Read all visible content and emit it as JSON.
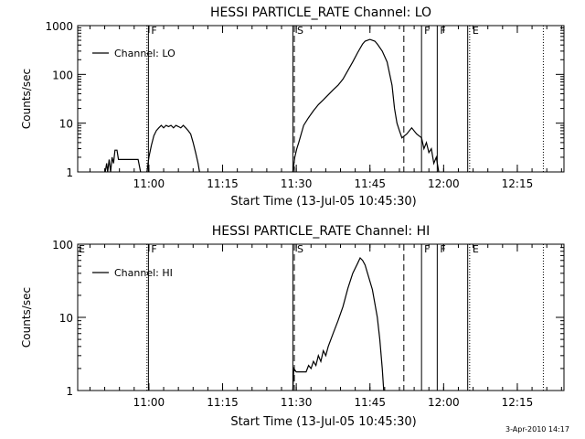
{
  "footer": {
    "timestamp": "3-Apr-2010 14:17"
  },
  "chart_data": [
    {
      "type": "line",
      "title": "HESSI PARTICLE_RATE Channel: LO",
      "xlabel": "Start Time (13-Jul-05 10:45:30)",
      "ylabel": "Counts/sec",
      "x_unit": "minutes after 10:45:30",
      "xlim": [
        0,
        99
      ],
      "y_scale": "log",
      "ylim": [
        1,
        1000
      ],
      "x_ticks": [
        {
          "v": 14.5,
          "label": "11:00"
        },
        {
          "v": 29.5,
          "label": "11:15"
        },
        {
          "v": 44.5,
          "label": "11:30"
        },
        {
          "v": 59.5,
          "label": "11:45"
        },
        {
          "v": 74.5,
          "label": "12:00"
        },
        {
          "v": 89.5,
          "label": "12:15"
        }
      ],
      "y_ticks": [
        {
          "v": 1,
          "label": "1"
        },
        {
          "v": 10,
          "label": "10"
        },
        {
          "v": 100,
          "label": "100"
        },
        {
          "v": 1000,
          "label": "1000"
        }
      ],
      "legend": {
        "label": "Channel: LO",
        "position": "top-left"
      },
      "series": [
        {
          "segments": [
            [
              [
                5.6,
                1
              ],
              [
                5.9,
                1.5
              ],
              [
                6.1,
                1
              ],
              [
                6.4,
                1.8
              ],
              [
                6.7,
                1
              ],
              [
                7.0,
                2.0
              ],
              [
                7.3,
                1.5
              ],
              [
                7.6,
                2.8
              ],
              [
                8.0,
                2.8
              ],
              [
                8.3,
                1.8
              ],
              [
                8.8,
                1.8
              ],
              [
                9.5,
                1.8
              ],
              [
                10.5,
                1.8
              ],
              [
                11.5,
                1.8
              ],
              [
                12.3,
                1.8
              ],
              [
                12.8,
                1
              ]
            ],
            [
              [
                14.1,
                1
              ],
              [
                14.5,
                2
              ],
              [
                15.0,
                3.5
              ],
              [
                15.5,
                5.5
              ],
              [
                16.0,
                7
              ],
              [
                16.5,
                8
              ],
              [
                17.0,
                9
              ],
              [
                17.5,
                8
              ],
              [
                18.0,
                9
              ],
              [
                18.5,
                8.5
              ],
              [
                19.0,
                9
              ],
              [
                19.5,
                8
              ],
              [
                20.0,
                9
              ],
              [
                20.5,
                8.5
              ],
              [
                21.0,
                8
              ],
              [
                21.5,
                9
              ],
              [
                22.0,
                8
              ],
              [
                22.5,
                7
              ],
              [
                23.0,
                6
              ],
              [
                23.5,
                4
              ],
              [
                24.0,
                2.5
              ],
              [
                24.5,
                1.5
              ],
              [
                24.8,
                1
              ]
            ],
            [
              [
                43.8,
                1
              ],
              [
                44.2,
                2
              ],
              [
                44.6,
                3
              ],
              [
                45.0,
                4
              ],
              [
                45.5,
                6
              ],
              [
                46.0,
                9
              ],
              [
                47.0,
                13
              ],
              [
                48.0,
                18
              ],
              [
                49.0,
                24
              ],
              [
                50.0,
                30
              ],
              [
                51.0,
                38
              ],
              [
                52.0,
                48
              ],
              [
                53.0,
                60
              ],
              [
                54.0,
                80
              ],
              [
                55.0,
                120
              ],
              [
                56.0,
                180
              ],
              [
                57.0,
                280
              ],
              [
                58.0,
                420
              ],
              [
                58.5,
                480
              ],
              [
                59.5,
                520
              ],
              [
                60.5,
                480
              ],
              [
                61.0,
                420
              ],
              [
                62.0,
                300
              ],
              [
                63.0,
                180
              ],
              [
                64.0,
                60
              ],
              [
                64.5,
                20
              ],
              [
                65.0,
                10
              ],
              [
                65.5,
                7
              ],
              [
                66.0,
                5
              ],
              [
                67.0,
                6
              ],
              [
                68.0,
                8
              ],
              [
                69.0,
                6
              ],
              [
                70.0,
                5
              ],
              [
                70.5,
                3
              ],
              [
                71.0,
                4
              ],
              [
                71.5,
                2.5
              ],
              [
                72.0,
                3
              ],
              [
                72.5,
                1.5
              ],
              [
                73.0,
                2
              ],
              [
                73.5,
                1
              ]
            ]
          ]
        }
      ],
      "markers": [
        {
          "x": 14.1,
          "style": "dotted",
          "label": ""
        },
        {
          "x": 14.4,
          "style": "solid",
          "label": "F"
        },
        {
          "x": 43.8,
          "style": "solid",
          "label": ""
        },
        {
          "x": 44.1,
          "style": "dashed",
          "label": "S"
        },
        {
          "x": 66.4,
          "style": "dashed",
          "label": ""
        },
        {
          "x": 70.0,
          "style": "solid",
          "label": "F"
        },
        {
          "x": 73.2,
          "style": "solid",
          "label": "F"
        },
        {
          "x": 79.4,
          "style": "solid",
          "label": ""
        },
        {
          "x": 79.8,
          "style": "dotted",
          "label": "E"
        },
        {
          "x": 94.8,
          "style": "dotted",
          "label": ""
        }
      ]
    },
    {
      "type": "line",
      "title": "HESSI PARTICLE_RATE Channel: HI",
      "xlabel": "Start Time (13-Jul-05 10:45:30)",
      "ylabel": "Counts/sec",
      "x_unit": "minutes after 10:45:30",
      "xlim": [
        0,
        99
      ],
      "y_scale": "log",
      "ylim": [
        1,
        100
      ],
      "x_ticks": [
        {
          "v": 14.5,
          "label": "11:00"
        },
        {
          "v": 29.5,
          "label": "11:15"
        },
        {
          "v": 44.5,
          "label": "11:30"
        },
        {
          "v": 59.5,
          "label": "11:45"
        },
        {
          "v": 74.5,
          "label": "12:00"
        },
        {
          "v": 89.5,
          "label": "12:15"
        }
      ],
      "y_ticks": [
        {
          "v": 1,
          "label": "1"
        },
        {
          "v": 10,
          "label": "10"
        },
        {
          "v": 100,
          "label": "100"
        }
      ],
      "legend": {
        "label": "Channel: HI",
        "position": "top-left"
      },
      "series": [
        {
          "segments": [
            [
              [
                43.8,
                1
              ],
              [
                44.0,
                2
              ],
              [
                44.5,
                1.8
              ],
              [
                45.5,
                1.8
              ],
              [
                46.5,
                1.8
              ],
              [
                47.0,
                2.2
              ],
              [
                47.5,
                2
              ],
              [
                48.0,
                2.5
              ],
              [
                48.5,
                2.2
              ],
              [
                49.0,
                3
              ],
              [
                49.5,
                2.5
              ],
              [
                50.0,
                3.5
              ],
              [
                50.5,
                3
              ],
              [
                51.0,
                4
              ],
              [
                52.0,
                6
              ],
              [
                53.0,
                9
              ],
              [
                54.0,
                14
              ],
              [
                55.0,
                25
              ],
              [
                56.0,
                40
              ],
              [
                57.0,
                55
              ],
              [
                57.5,
                65
              ],
              [
                58.0,
                60
              ],
              [
                58.5,
                52
              ],
              [
                59.0,
                40
              ],
              [
                60.0,
                24
              ],
              [
                61.0,
                10
              ],
              [
                61.5,
                5
              ],
              [
                62.0,
                2
              ],
              [
                62.3,
                1
              ]
            ]
          ]
        }
      ],
      "markers": [
        {
          "x": 14.1,
          "style": "dotted",
          "label": ""
        },
        {
          "x": 14.4,
          "style": "solid",
          "label": "F"
        },
        {
          "x": 43.8,
          "style": "solid",
          "label": ""
        },
        {
          "x": 44.1,
          "style": "dashed",
          "label": "S"
        },
        {
          "x": 66.4,
          "style": "dashed",
          "label": ""
        },
        {
          "x": 70.0,
          "style": "solid",
          "label": "F"
        },
        {
          "x": 73.2,
          "style": "solid",
          "label": "F"
        },
        {
          "x": 79.4,
          "style": "solid",
          "label": ""
        },
        {
          "x": 79.8,
          "style": "dotted",
          "label": "E"
        },
        {
          "x": 94.8,
          "style": "dotted",
          "label": ""
        }
      ],
      "corner_labels": [
        "E"
      ]
    }
  ]
}
